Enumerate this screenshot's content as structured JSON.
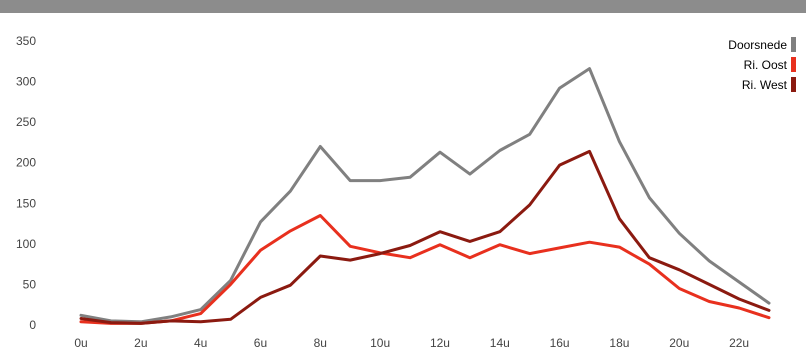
{
  "chart_data": {
    "type": "line",
    "title": "",
    "xlabel": "",
    "ylabel": "",
    "x": [
      0,
      1,
      2,
      3,
      4,
      5,
      6,
      7,
      8,
      9,
      10,
      11,
      12,
      13,
      14,
      15,
      16,
      17,
      18,
      19,
      20,
      21,
      22,
      23
    ],
    "x_tick_values": [
      0,
      2,
      4,
      6,
      8,
      10,
      12,
      14,
      16,
      18,
      20,
      22
    ],
    "x_tick_labels": [
      "0u",
      "2u",
      "4u",
      "6u",
      "8u",
      "10u",
      "12u",
      "14u",
      "16u",
      "18u",
      "20u",
      "22u"
    ],
    "y_ticks": [
      0,
      50,
      100,
      150,
      200,
      250,
      300,
      350
    ],
    "ylim": [
      0,
      350
    ],
    "grid": false,
    "legend_position": "top-right",
    "series": [
      {
        "name": "Doorsnede",
        "color": "#808080",
        "values": [
          12,
          5,
          4,
          10,
          19,
          55,
          127,
          165,
          220,
          178,
          178,
          182,
          213,
          186,
          215,
          235,
          292,
          316,
          226,
          157,
          113,
          79,
          53,
          27
        ]
      },
      {
        "name": "Ri. Oost",
        "color": "#e8301e",
        "values": [
          4,
          2,
          2,
          5,
          14,
          50,
          92,
          116,
          135,
          97,
          89,
          83,
          99,
          83,
          99,
          88,
          95,
          102,
          96,
          75,
          45,
          29,
          21,
          9
        ]
      },
      {
        "name": "Ri. West",
        "color": "#8b1a10",
        "values": [
          8,
          3,
          2,
          5,
          4,
          7,
          34,
          49,
          85,
          80,
          88,
          98,
          115,
          103,
          115,
          148,
          197,
          214,
          131,
          83,
          68,
          50,
          32,
          18
        ]
      }
    ]
  }
}
